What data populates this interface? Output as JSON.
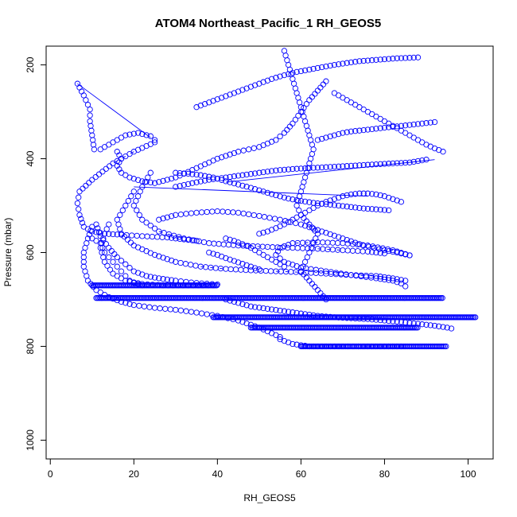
{
  "chart_data": {
    "type": "scatter",
    "title": "ATOM4 Northeast_Pacific_1 RH_GEOS5",
    "xlabel": "RH_GEOS5",
    "ylabel": "Pressure (mbar)",
    "xlim": [
      -1,
      106
    ],
    "ylim": [
      1040,
      160
    ],
    "y_reversed": true,
    "grid": false,
    "xticks": [
      0,
      20,
      40,
      60,
      80,
      100
    ],
    "yticks": [
      200,
      400,
      600,
      800,
      1000
    ],
    "point_color": "#0000ff",
    "marker": "open-circle",
    "series": [
      {
        "x": [
          6.5,
          8,
          9.5,
          9.5,
          10,
          10.5,
          12,
          15,
          18,
          21,
          24,
          25
        ],
        "y": [
          240,
          265,
          295,
          320,
          350,
          380,
          380,
          365,
          350,
          345,
          352,
          360
        ]
      },
      {
        "x": [
          25,
          20,
          15,
          10,
          7,
          6.5,
          7,
          8,
          10,
          13,
          17,
          22,
          28,
          32,
          35
        ],
        "y": [
          365,
          385,
          410,
          445,
          470,
          495,
          520,
          545,
          555,
          560,
          562,
          565,
          568,
          572,
          575
        ]
      },
      {
        "x": [
          16,
          17,
          16,
          17,
          19,
          22,
          25,
          30,
          35,
          40,
          45,
          50,
          54,
          56,
          58,
          60,
          62,
          64,
          66
        ],
        "y": [
          385,
          400,
          415,
          430,
          440,
          448,
          452,
          440,
          420,
          400,
          385,
          375,
          360,
          345,
          325,
          300,
          275,
          255,
          235
        ]
      },
      {
        "x": [
          10,
          9,
          8,
          8,
          9,
          11,
          14,
          17,
          20,
          25,
          30,
          35,
          40,
          45,
          50,
          55
        ],
        "y": [
          545,
          570,
          600,
          630,
          660,
          680,
          695,
          705,
          712,
          718,
          722,
          728,
          735,
          745,
          760,
          780
        ]
      },
      {
        "x": [
          55,
          58,
          62,
          66,
          70,
          75,
          78,
          80,
          82,
          84
        ],
        "y": [
          785,
          795,
          800,
          800,
          800,
          800,
          800,
          800,
          800,
          800
        ]
      },
      {
        "x": [
          11,
          12,
          14,
          16,
          18,
          20,
          23,
          26,
          30,
          35,
          40
        ],
        "y": [
          540,
          565,
          590,
          610,
          625,
          640,
          650,
          655,
          660,
          665,
          668
        ]
      },
      {
        "x": [
          14,
          13,
          12,
          13,
          15,
          18,
          22,
          27,
          33,
          39
        ],
        "y": [
          540,
          560,
          590,
          620,
          645,
          660,
          667,
          670,
          670,
          670
        ]
      },
      {
        "x": [
          20,
          18,
          16,
          17,
          20,
          25,
          30,
          36,
          42,
          48,
          54,
          60,
          66,
          72,
          78,
          82,
          85
        ],
        "y": [
          470,
          500,
          530,
          560,
          585,
          605,
          620,
          630,
          635,
          638,
          640,
          642,
          645,
          648,
          650,
          655,
          660
        ]
      },
      {
        "x": [
          24,
          22,
          20,
          22,
          26,
          32,
          38,
          45,
          52,
          58,
          64,
          70,
          76,
          80
        ],
        "y": [
          430,
          460,
          500,
          530,
          555,
          570,
          580,
          585,
          588,
          590,
          592,
          595,
          598,
          602
        ]
      },
      {
        "x": [
          26,
          30,
          35,
          40,
          45,
          50,
          55,
          60,
          65,
          70,
          75,
          80,
          84,
          86
        ],
        "y": [
          530,
          520,
          515,
          512,
          515,
          522,
          530,
          540,
          555,
          570,
          585,
          595,
          602,
          606
        ]
      },
      {
        "x": [
          86,
          82,
          76,
          70,
          64,
          58,
          55,
          54,
          56,
          60,
          66,
          72,
          78,
          82,
          84,
          85
        ],
        "y": [
          606,
          595,
          585,
          580,
          578,
          580,
          590,
          605,
          620,
          632,
          640,
          648,
          655,
          660,
          666,
          672
        ]
      },
      {
        "x": [
          42,
          44,
          46,
          48,
          52,
          56,
          60,
          64,
          68,
          72,
          76,
          80,
          84,
          88,
          92,
          95,
          96
        ],
        "y": [
          700,
          705,
          710,
          715,
          720,
          725,
          730,
          735,
          738,
          740,
          742,
          745,
          748,
          752,
          756,
          760,
          762
        ]
      },
      {
        "x": [
          10,
          11,
          12,
          12.5,
          13,
          14,
          15,
          16,
          17,
          18,
          19,
          20,
          22
        ],
        "y": [
          570,
          575,
          580,
          590,
          600,
          610,
          620,
          630,
          640,
          650,
          660,
          665,
          670
        ]
      },
      {
        "x": [
          56,
          57,
          58,
          59,
          60,
          61,
          62,
          63,
          62,
          61,
          60,
          59,
          60,
          62,
          64,
          63,
          62,
          61,
          60,
          62,
          64,
          66
        ],
        "y": [
          170,
          200,
          230,
          260,
          290,
          320,
          350,
          380,
          410,
          440,
          470,
          500,
          520,
          540,
          560,
          580,
          600,
          620,
          640,
          660,
          680,
          700
        ]
      },
      {
        "x": [
          50,
          52,
          54,
          56,
          58,
          60,
          62,
          64,
          66,
          68,
          70,
          72,
          74,
          76,
          78,
          80,
          82,
          84
        ],
        "y": [
          560,
          555,
          548,
          540,
          530,
          520,
          510,
          500,
          492,
          486,
          480,
          476,
          474,
          474,
          476,
          480,
          486,
          492
        ]
      },
      {
        "x": [
          35,
          38,
          41,
          44,
          47,
          50,
          53,
          56,
          59,
          62,
          65,
          68,
          71,
          74,
          77,
          80,
          83,
          86,
          88
        ],
        "y": [
          290,
          280,
          270,
          260,
          250,
          240,
          230,
          222,
          215,
          210,
          205,
          200,
          196,
          192,
          190,
          188,
          186,
          185,
          184
        ]
      },
      {
        "x": [
          30,
          34,
          38,
          42,
          46,
          50,
          54,
          58,
          62,
          66,
          70,
          74,
          78,
          82,
          86,
          88,
          90
        ],
        "y": [
          460,
          452,
          445,
          440,
          435,
          430,
          425,
          422,
          420,
          418,
          416,
          414,
          412,
          410,
          408,
          405,
          402
        ]
      },
      {
        "x": [
          30,
          33,
          36,
          39,
          42,
          45,
          48,
          51,
          54,
          57,
          60,
          63,
          66,
          69,
          72,
          75,
          78,
          81
        ],
        "y": [
          430,
          432,
          435,
          440,
          448,
          455,
          462,
          470,
          478,
          485,
          490,
          494,
          497,
          500,
          503,
          506,
          508,
          510
        ]
      },
      {
        "x": [
          64,
          66,
          68,
          70,
          72,
          74,
          76,
          78,
          80,
          82,
          84,
          86,
          88,
          90,
          92
        ],
        "y": [
          360,
          355,
          350,
          345,
          342,
          340,
          338,
          336,
          334,
          332,
          330,
          328,
          326,
          324,
          322
        ]
      },
      {
        "x": [
          68,
          70,
          72,
          74,
          76,
          78,
          80,
          82,
          84,
          86,
          88,
          90,
          92,
          94
        ],
        "y": [
          260,
          270,
          280,
          290,
          300,
          310,
          320,
          330,
          340,
          350,
          360,
          370,
          378,
          385
        ]
      },
      {
        "x": [
          42,
          44,
          46,
          48,
          50,
          52,
          54,
          56
        ],
        "y": [
          570,
          575,
          582,
          590,
          600,
          610,
          620,
          630
        ]
      },
      {
        "x": [
          38,
          40,
          42,
          44,
          46,
          48,
          50
        ],
        "y": [
          600,
          605,
          612,
          618,
          624,
          630,
          636
        ]
      }
    ],
    "horizontal_runs": [
      {
        "y": 670,
        "x_from": 10,
        "x_to": 40
      },
      {
        "y": 697,
        "x_from": 11,
        "x_to": 94
      },
      {
        "y": 738,
        "x_from": 39,
        "x_to": 102
      },
      {
        "y": 760,
        "x_from": 48,
        "x_to": 88
      },
      {
        "y": 800,
        "x_from": 60,
        "x_to": 95
      }
    ],
    "straight_lines": [
      {
        "x1": 6.5,
        "y1": 240,
        "x2": 24,
        "y2": 355
      },
      {
        "x1": 42,
        "y1": 450,
        "x2": 92,
        "y2": 402
      },
      {
        "x1": 20,
        "y1": 460,
        "x2": 76,
        "y2": 480
      }
    ]
  }
}
